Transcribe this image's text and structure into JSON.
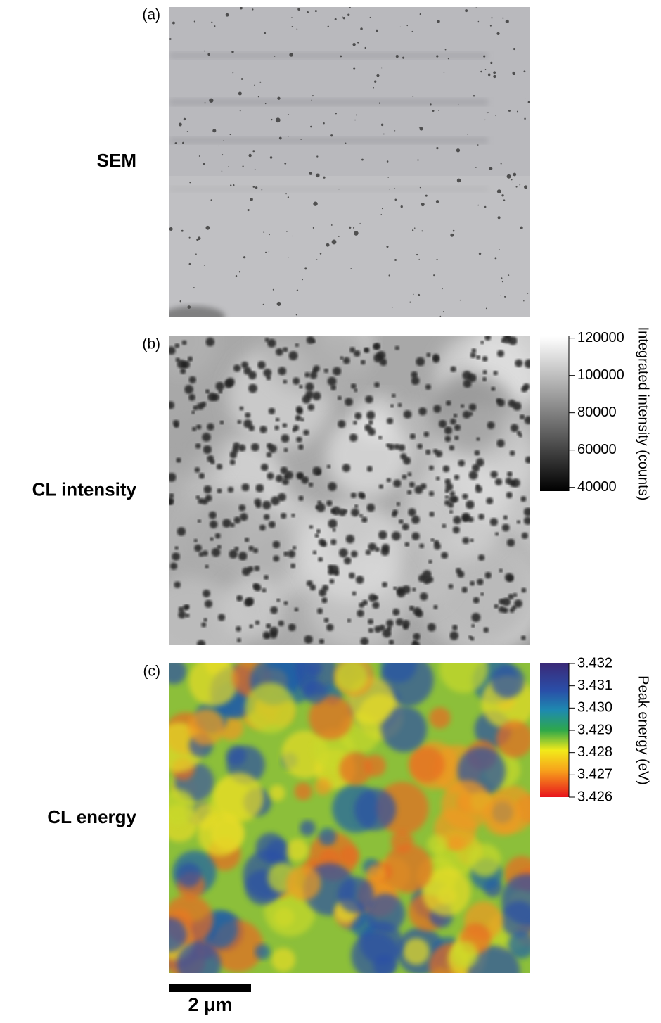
{
  "panels": [
    {
      "label": "(a)",
      "name": "SEM"
    },
    {
      "label": "(b)",
      "name": "CL intensity",
      "colorbar": {
        "label": "Integrated intensity (counts)",
        "lim": [
          38000,
          121000
        ],
        "ticks": [
          40000,
          60000,
          80000,
          100000,
          120000
        ]
      }
    },
    {
      "label": "(c)",
      "name": "CL energy",
      "colorbar": {
        "label": "Peak energy (eV)",
        "lim": [
          3.426,
          3.432
        ],
        "ticks": [
          {
            "value": 3.426,
            "label": "3.426"
          },
          {
            "value": 3.427,
            "label": "3.427"
          },
          {
            "value": 3.428,
            "label": "3.428"
          },
          {
            "value": 3.429,
            "label": "3.429"
          },
          {
            "value": 3.43,
            "label": "3.430"
          },
          {
            "value": 3.431,
            "label": "3.431"
          },
          {
            "value": 3.432,
            "label": "3.432"
          }
        ]
      }
    }
  ],
  "scale_bar": {
    "label": "2 μm"
  }
}
